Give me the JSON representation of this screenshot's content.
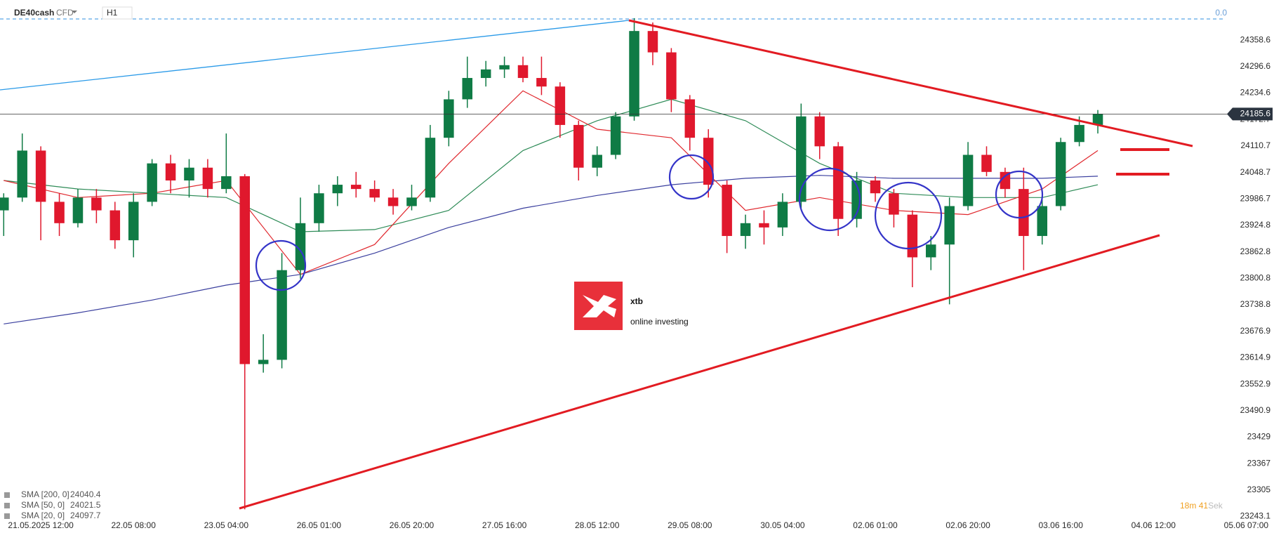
{
  "chart_data": {
    "type": "candlestick",
    "title": "DE40cash",
    "subtitle": "CFD",
    "timeframe": "H1",
    "corner_label": "0.0",
    "up_color": "#0f7b45",
    "down_color": "#e0182d",
    "x": [
      -8,
      -4,
      0,
      4,
      8,
      12,
      16,
      20,
      24,
      28,
      32,
      36,
      40,
      44,
      48,
      52,
      56,
      60,
      64,
      68,
      72,
      76,
      80,
      84,
      88,
      92,
      96,
      100,
      104,
      108,
      112,
      116,
      120,
      124,
      128,
      132,
      136,
      140,
      144,
      148,
      152,
      156,
      160,
      164,
      168,
      172,
      176,
      180,
      184,
      188,
      192,
      196,
      200,
      204,
      208,
      212,
      216,
      220,
      224,
      228
    ],
    "open": [
      23960,
      23990,
      24100,
      23980,
      23930,
      23990,
      23960,
      23890,
      23980,
      24070,
      24030,
      24060,
      24010,
      24040,
      23600,
      23610,
      23820,
      23930,
      24000,
      24020,
      24010,
      23990,
      23970,
      23990,
      24130,
      24220,
      24270,
      24290,
      24300,
      24270,
      24250,
      24160,
      24060,
      24090,
      24180,
      24380,
      24330,
      24220,
      24130,
      24020,
      23900,
      23930,
      23920,
      23980,
      24180,
      24110,
      23940,
      24030,
      24000,
      23950,
      23850,
      23880,
      23970,
      24090,
      24050,
      24010,
      23900,
      23970,
      24120,
      24160
    ],
    "high": [
      24000,
      24140,
      24110,
      24000,
      24010,
      24010,
      23980,
      24000,
      24080,
      24090,
      24080,
      24080,
      24140,
      24045,
      23670,
      23860,
      23990,
      24020,
      24040,
      24050,
      24030,
      24010,
      24020,
      24160,
      24240,
      24320,
      24310,
      24320,
      24320,
      24320,
      24260,
      24170,
      24110,
      24190,
      24410,
      24400,
      24340,
      24230,
      24150,
      24030,
      23950,
      23960,
      24000,
      24210,
      24190,
      24120,
      24050,
      24040,
      24010,
      23960,
      23900,
      23990,
      24120,
      24110,
      24060,
      24060,
      23990,
      24130,
      24180,
      24195
    ],
    "low": [
      23900,
      23980,
      23890,
      23900,
      23920,
      23930,
      23870,
      23850,
      23970,
      24000,
      23990,
      23990,
      24000,
      23260,
      23580,
      23590,
      23800,
      23910,
      23970,
      23990,
      23980,
      23950,
      23960,
      23980,
      24110,
      24200,
      24250,
      24270,
      24260,
      24230,
      24130,
      24030,
      24040,
      24080,
      24170,
      24300,
      24190,
      24100,
      23990,
      23860,
      23870,
      23880,
      23900,
      23960,
      24080,
      23900,
      23920,
      23980,
      23920,
      23780,
      23820,
      23740,
      23960,
      24040,
      23990,
      23820,
      23880,
      23960,
      24110,
      24140
    ],
    "close": [
      23990,
      24100,
      23980,
      23930,
      23990,
      23960,
      23890,
      23980,
      24070,
      24030,
      24060,
      24010,
      24040,
      23600,
      23610,
      23820,
      23930,
      24000,
      24020,
      24010,
      23990,
      23970,
      23990,
      24130,
      24220,
      24270,
      24290,
      24300,
      24270,
      24250,
      24160,
      24060,
      24090,
      24180,
      24380,
      24330,
      24220,
      24130,
      24020,
      23900,
      23930,
      23920,
      23980,
      24180,
      24110,
      23940,
      24030,
      24000,
      23950,
      23850,
      23880,
      23970,
      24090,
      24050,
      24010,
      23900,
      23970,
      24120,
      24160,
      24185.6
    ],
    "last_price": 24185.6,
    "overlays": [
      {
        "name": "SMA [200,  0]",
        "value": 24040.4,
        "color": "#3a3f9e",
        "x": [
          -8,
          8,
          24,
          40,
          56,
          72,
          88,
          104,
          120,
          136,
          152,
          168,
          184,
          200,
          216,
          228
        ],
        "values": [
          23694,
          23720,
          23750,
          23785,
          23810,
          23860,
          23920,
          23965,
          23995,
          24020,
          24035,
          24042,
          24035,
          24035,
          24035,
          24040
        ]
      },
      {
        "name": "SMA [50,  0]",
        "value": 24021.5,
        "color": "#2e8b57",
        "x": [
          -8,
          8,
          24,
          40,
          56,
          72,
          88,
          104,
          120,
          136,
          152,
          168,
          184,
          200,
          216,
          228
        ],
        "values": [
          24030,
          24010,
          24000,
          23990,
          23910,
          23915,
          23960,
          24100,
          24170,
          24220,
          24170,
          24070,
          24000,
          23990,
          23990,
          24020
        ]
      },
      {
        "name": "SMA [20,  0]",
        "value": 24097.7,
        "color": "#e0282e",
        "x": [
          -8,
          8,
          24,
          40,
          56,
          72,
          88,
          104,
          120,
          136,
          152,
          168,
          184,
          200,
          216,
          228
        ],
        "values": [
          24030,
          23990,
          24000,
          24030,
          23810,
          23880,
          24070,
          24240,
          24150,
          24130,
          23960,
          23990,
          23960,
          23950,
          24010,
          24100
        ]
      }
    ],
    "xlim": [
      -8.8,
      266
    ],
    "ylim": [
      23239,
      24452.6
    ],
    "xticks": [
      {
        "value": 0,
        "label": "21.05.2025   12:00"
      },
      {
        "value": 20,
        "label": "22.05  08:00"
      },
      {
        "value": 40,
        "label": "23.05  04:00"
      },
      {
        "value": 60,
        "label": "26.05  01:00"
      },
      {
        "value": 80,
        "label": "26.05  20:00"
      },
      {
        "value": 100,
        "label": "27.05  16:00"
      },
      {
        "value": 120,
        "label": "28.05  12:00"
      },
      {
        "value": 140,
        "label": "29.05  08:00"
      },
      {
        "value": 160,
        "label": "30.05  04:00"
      },
      {
        "value": 180,
        "label": "02.06  01:00"
      },
      {
        "value": 200,
        "label": "02.06  20:00"
      },
      {
        "value": 220,
        "label": "03.06  16:00"
      },
      {
        "value": 240,
        "label": "04.06  12:00"
      },
      {
        "value": 260,
        "label": "05.06  07:00"
      }
    ],
    "yticks": [
      24358.6,
      24296.6,
      24234.6,
      24172.7,
      24110.7,
      24048.7,
      23986.7,
      23924.8,
      23862.8,
      23800.8,
      23738.8,
      23676.9,
      23614.9,
      23552.9,
      23490.9,
      23429,
      23367,
      23305,
      23243.1
    ],
    "grid": false,
    "countdown": {
      "minutes": "18",
      "minutes_unit": "m",
      "seconds": "41",
      "seconds_unit": "Sek"
    },
    "logo": {
      "name": "xtb",
      "tagline": "online investing"
    }
  }
}
